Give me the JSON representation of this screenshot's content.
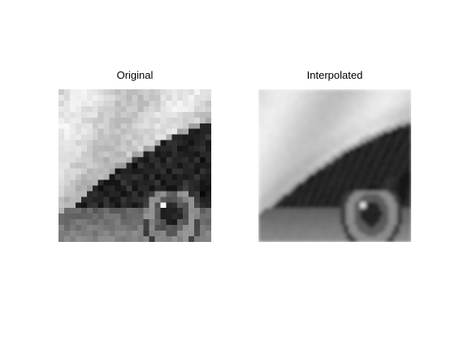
{
  "figure": {
    "background": "#ffffff",
    "panels": [
      {
        "title": "Original",
        "style": "pixelated",
        "subject": "eye-closeup-grayscale"
      },
      {
        "title": "Interpolated",
        "style": "smooth",
        "subject": "eye-closeup-grayscale"
      }
    ]
  },
  "colors": {
    "skin_light": "#e6e6e6",
    "skin_mid": "#b4b4b4",
    "lashes_dark": "#141414",
    "iris": "#5a5a5a",
    "pupil": "#1e1e1e",
    "highlight": "#ffffff"
  }
}
